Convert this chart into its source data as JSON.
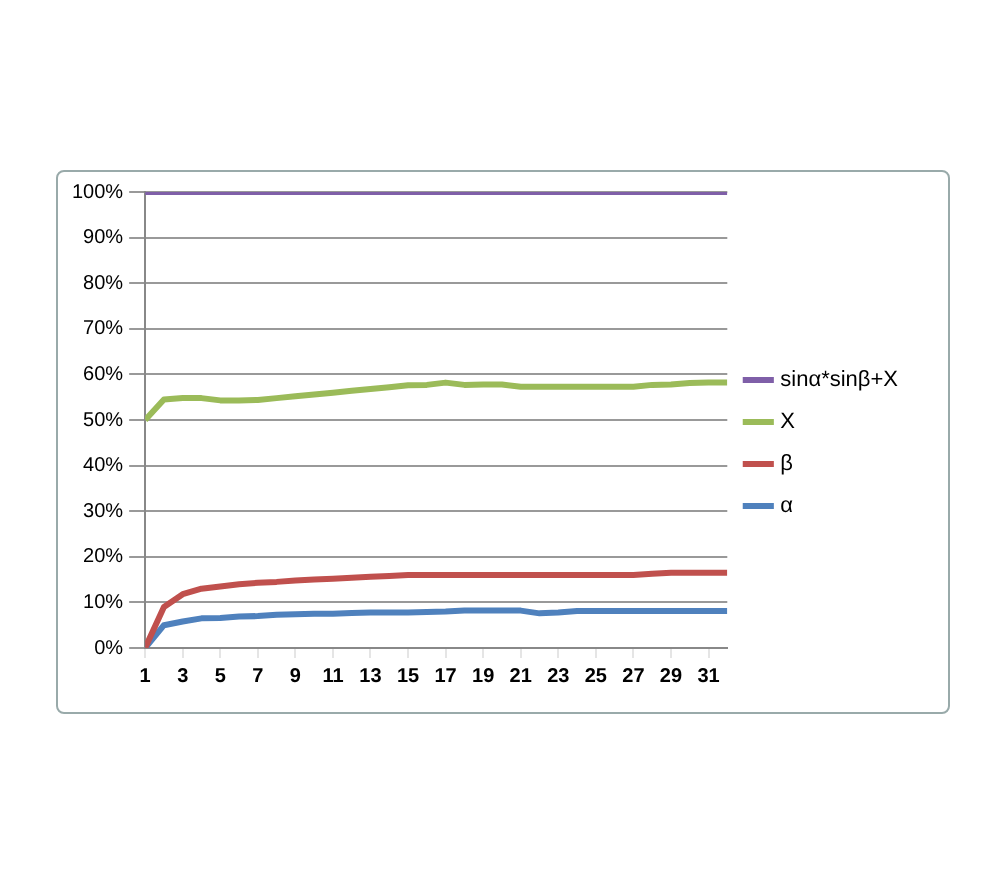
{
  "chart_data": {
    "type": "line",
    "x": [
      1,
      2,
      3,
      4,
      5,
      6,
      7,
      8,
      9,
      10,
      11,
      12,
      13,
      14,
      15,
      16,
      17,
      18,
      19,
      20,
      21,
      22,
      23,
      24,
      25,
      26,
      27,
      28,
      29,
      30,
      31,
      32
    ],
    "xlim": [
      1,
      32
    ],
    "xticks": [
      1,
      3,
      5,
      7,
      9,
      11,
      13,
      15,
      17,
      19,
      21,
      23,
      25,
      27,
      29,
      31
    ],
    "series": [
      {
        "name": "sinα*sinβ+X",
        "color": "#7f5fa8",
        "values": [
          100,
          100,
          100,
          100,
          100,
          100,
          100,
          100,
          100,
          100,
          100,
          100,
          100,
          100,
          100,
          100,
          100,
          100,
          100,
          100,
          100,
          100,
          100,
          100,
          100,
          100,
          100,
          100,
          100,
          100,
          100,
          100
        ]
      },
      {
        "name": "X",
        "color": "#9bbb59",
        "values": [
          50,
          54.5,
          54.8,
          54.8,
          54.3,
          54.3,
          54.4,
          54.8,
          55.2,
          55.6,
          56,
          56.4,
          56.8,
          57.2,
          57.6,
          57.7,
          58.2,
          57.7,
          57.8,
          57.8,
          57.3,
          57.3,
          57.3,
          57.3,
          57.3,
          57.3,
          57.3,
          57.7,
          57.8,
          58.1,
          58.2,
          58.2
        ]
      },
      {
        "name": "β",
        "color": "#c0504d",
        "values": [
          0,
          9,
          11.8,
          13,
          13.5,
          14,
          14.3,
          14.5,
          14.8,
          15,
          15.2,
          15.4,
          15.6,
          15.8,
          16,
          16,
          16,
          16,
          16,
          16,
          16,
          16,
          16,
          16,
          16,
          16,
          16,
          16.3,
          16.5,
          16.5,
          16.5,
          16.5
        ]
      },
      {
        "name": "α",
        "color": "#4f81bd",
        "values": [
          0,
          5,
          5.8,
          6.5,
          6.6,
          6.9,
          7,
          7.3,
          7.4,
          7.5,
          7.5,
          7.7,
          7.8,
          7.8,
          7.8,
          7.9,
          8,
          8.2,
          8.2,
          8.2,
          8.2,
          7.6,
          7.8,
          8.1,
          8.1,
          8.1,
          8.1,
          8.1,
          8.1,
          8.1,
          8.1,
          8.1
        ]
      }
    ],
    "ylim": [
      0,
      100
    ],
    "yticks": [
      {
        "value": 0,
        "label": "0%"
      },
      {
        "value": 10,
        "label": "10%"
      },
      {
        "value": 20,
        "label": "20%"
      },
      {
        "value": 30,
        "label": "30%"
      },
      {
        "value": 40,
        "label": "40%"
      },
      {
        "value": 50,
        "label": "50%"
      },
      {
        "value": 60,
        "label": "60%"
      },
      {
        "value": 70,
        "label": "70%"
      },
      {
        "value": 80,
        "label": "80%"
      },
      {
        "value": 90,
        "label": "90%"
      },
      {
        "value": 100,
        "label": "100%"
      }
    ],
    "grid": "y",
    "legend": "right",
    "marker": "none",
    "line_style": "solid"
  }
}
